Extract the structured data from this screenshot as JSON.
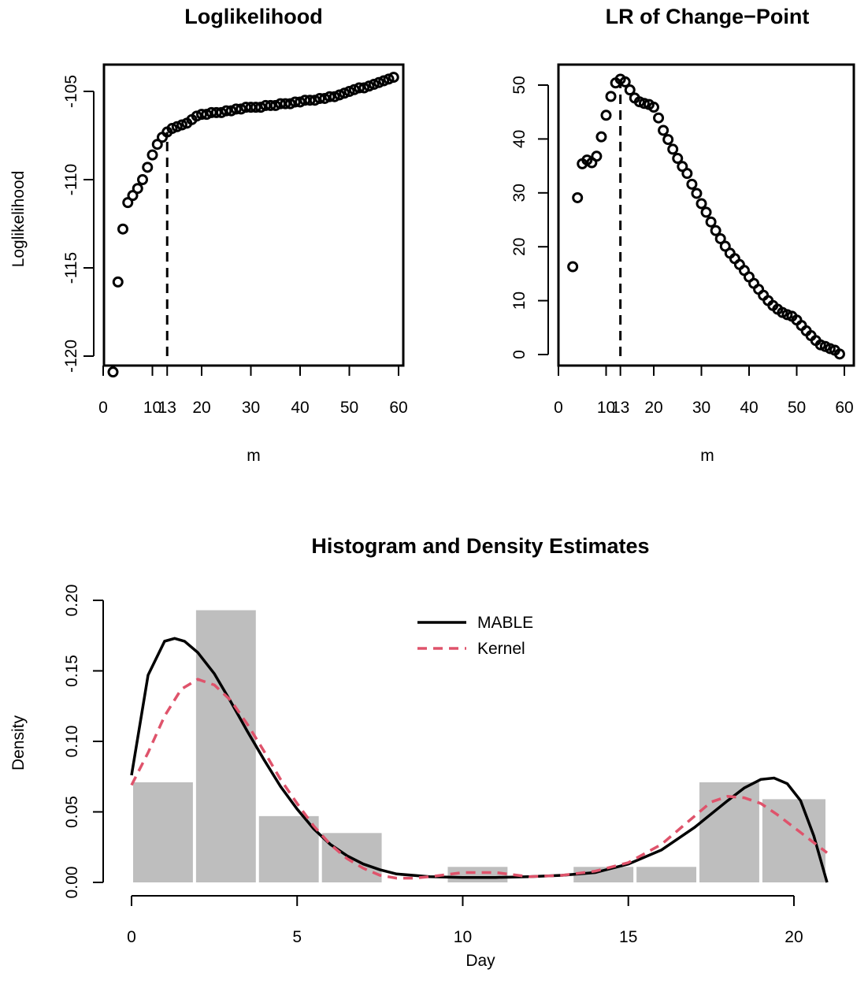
{
  "chart_data": [
    {
      "type": "scatter",
      "title": "Loglikelihood",
      "xlabel": "m",
      "ylabel": "Loglikelihood",
      "xlim": [
        2,
        59
      ],
      "ylim": [
        -121,
        -104
      ],
      "x_ticks": [
        "0",
        "10",
        "13",
        "20",
        "30",
        "40",
        "50",
        "60"
      ],
      "y_ticks": [
        "-120",
        "-115",
        "-110",
        "-105"
      ],
      "changepoint": 13,
      "x": [
        2,
        3,
        4,
        5,
        6,
        7,
        8,
        9,
        10,
        11,
        12,
        13,
        14,
        15,
        16,
        17,
        18,
        19,
        20,
        21,
        22,
        23,
        24,
        25,
        26,
        27,
        28,
        29,
        30,
        31,
        32,
        33,
        34,
        35,
        36,
        37,
        38,
        39,
        40,
        41,
        42,
        43,
        44,
        45,
        46,
        47,
        48,
        49,
        50,
        51,
        52,
        53,
        54,
        55,
        56,
        57,
        58,
        59
      ],
      "y": [
        -120.9,
        -115.8,
        -112.8,
        -111.3,
        -110.9,
        -110.5,
        -110.0,
        -109.3,
        -108.6,
        -108.0,
        -107.6,
        -107.3,
        -107.1,
        -107.0,
        -106.9,
        -106.8,
        -106.6,
        -106.4,
        -106.3,
        -106.3,
        -106.2,
        -106.2,
        -106.2,
        -106.1,
        -106.1,
        -106.0,
        -106.0,
        -105.9,
        -105.9,
        -105.9,
        -105.9,
        -105.8,
        -105.8,
        -105.8,
        -105.7,
        -105.7,
        -105.7,
        -105.6,
        -105.6,
        -105.5,
        -105.5,
        -105.5,
        -105.4,
        -105.4,
        -105.3,
        -105.3,
        -105.2,
        -105.1,
        -105.0,
        -104.9,
        -104.8,
        -104.8,
        -104.7,
        -104.6,
        -104.5,
        -104.4,
        -104.3,
        -104.2
      ]
    },
    {
      "type": "scatter",
      "title": "LR of Change−Point",
      "xlabel": "m",
      "ylabel": "",
      "xlim": [
        2,
        59
      ],
      "ylim": [
        0,
        52
      ],
      "x_ticks": [
        "0",
        "10",
        "13",
        "20",
        "30",
        "40",
        "50",
        "60"
      ],
      "y_ticks": [
        "0",
        "10",
        "20",
        "30",
        "40",
        "50"
      ],
      "changepoint": 13,
      "x": [
        3,
        4,
        5,
        6,
        7,
        8,
        9,
        10,
        11,
        12,
        13,
        14,
        15,
        16,
        17,
        18,
        19,
        20,
        21,
        22,
        23,
        24,
        25,
        26,
        27,
        28,
        29,
        30,
        31,
        32,
        33,
        34,
        35,
        36,
        37,
        38,
        39,
        40,
        41,
        42,
        43,
        44,
        45,
        46,
        47,
        48,
        49,
        50,
        51,
        52,
        53,
        54,
        55,
        56,
        57,
        58,
        59
      ],
      "y": [
        16.3,
        29.1,
        35.4,
        36.1,
        35.6,
        36.8,
        40.4,
        44.4,
        47.9,
        50.4,
        51.1,
        50.6,
        49.1,
        47.6,
        46.9,
        46.6,
        46.4,
        45.9,
        43.9,
        41.6,
        39.9,
        38.1,
        36.4,
        34.9,
        33.6,
        31.6,
        29.9,
        28.0,
        26.4,
        24.6,
        23.0,
        21.5,
        20.1,
        18.8,
        17.8,
        16.7,
        15.6,
        14.4,
        13.2,
        12.1,
        11.0,
        10.0,
        9.1,
        8.4,
        7.8,
        7.4,
        7.1,
        6.4,
        5.4,
        4.4,
        3.5,
        2.6,
        1.8,
        1.5,
        1.1,
        0.8,
        0.1
      ]
    },
    {
      "type": "bar",
      "title": "Histogram and Density Estimates",
      "xlabel": "Day",
      "ylabel": "Density",
      "xlim": [
        0,
        21
      ],
      "ylim": [
        0,
        0.2
      ],
      "x_ticks": [
        "0",
        "5",
        "10",
        "15",
        "20"
      ],
      "y_ticks": [
        "0.00",
        "0.05",
        "0.10",
        "0.15",
        "0.20"
      ],
      "bin_edges": [
        0,
        1.9,
        3.8,
        5.7,
        7.6,
        9.5,
        11.4,
        13.3,
        15.2,
        17.1,
        19.0,
        21.0
      ],
      "values": [
        0.071,
        0.193,
        0.047,
        0.035,
        0.0,
        0.011,
        0.0,
        0.011,
        0.011,
        0.071,
        0.059
      ],
      "series": [
        {
          "name": "MABLE",
          "color": "#000000",
          "dash": "solid",
          "x": [
            0,
            0.5,
            1,
            1.3,
            1.6,
            2,
            2.5,
            3,
            3.5,
            4,
            4.5,
            5,
            5.5,
            6,
            6.5,
            7,
            7.5,
            8,
            9,
            10,
            11,
            12,
            13,
            14,
            15,
            16,
            17,
            18,
            18.5,
            19,
            19.4,
            19.8,
            20.2,
            20.6,
            21
          ],
          "y": [
            0.076,
            0.147,
            0.171,
            0.173,
            0.171,
            0.163,
            0.148,
            0.128,
            0.107,
            0.087,
            0.068,
            0.052,
            0.038,
            0.027,
            0.019,
            0.013,
            0.009,
            0.006,
            0.004,
            0.0035,
            0.0035,
            0.004,
            0.005,
            0.007,
            0.013,
            0.023,
            0.039,
            0.058,
            0.067,
            0.073,
            0.074,
            0.07,
            0.058,
            0.033,
            0.0
          ]
        },
        {
          "name": "Kernel",
          "color": "#DF536B",
          "dash": "dashed",
          "x": [
            0,
            0.5,
            1,
            1.5,
            2,
            2.5,
            3,
            3.5,
            4,
            4.5,
            5,
            5.5,
            6,
            6.5,
            7,
            7.5,
            8,
            8.5,
            9,
            10,
            11,
            12,
            13,
            14,
            15,
            16,
            17,
            17.5,
            18,
            18.5,
            19,
            19.5,
            20,
            20.5,
            21
          ],
          "y": [
            0.069,
            0.092,
            0.118,
            0.137,
            0.144,
            0.14,
            0.129,
            0.112,
            0.093,
            0.073,
            0.056,
            0.04,
            0.027,
            0.017,
            0.01,
            0.005,
            0.003,
            0.003,
            0.004,
            0.007,
            0.007,
            0.004,
            0.005,
            0.008,
            0.014,
            0.027,
            0.047,
            0.057,
            0.061,
            0.06,
            0.056,
            0.048,
            0.039,
            0.03,
            0.021
          ]
        }
      ]
    }
  ]
}
